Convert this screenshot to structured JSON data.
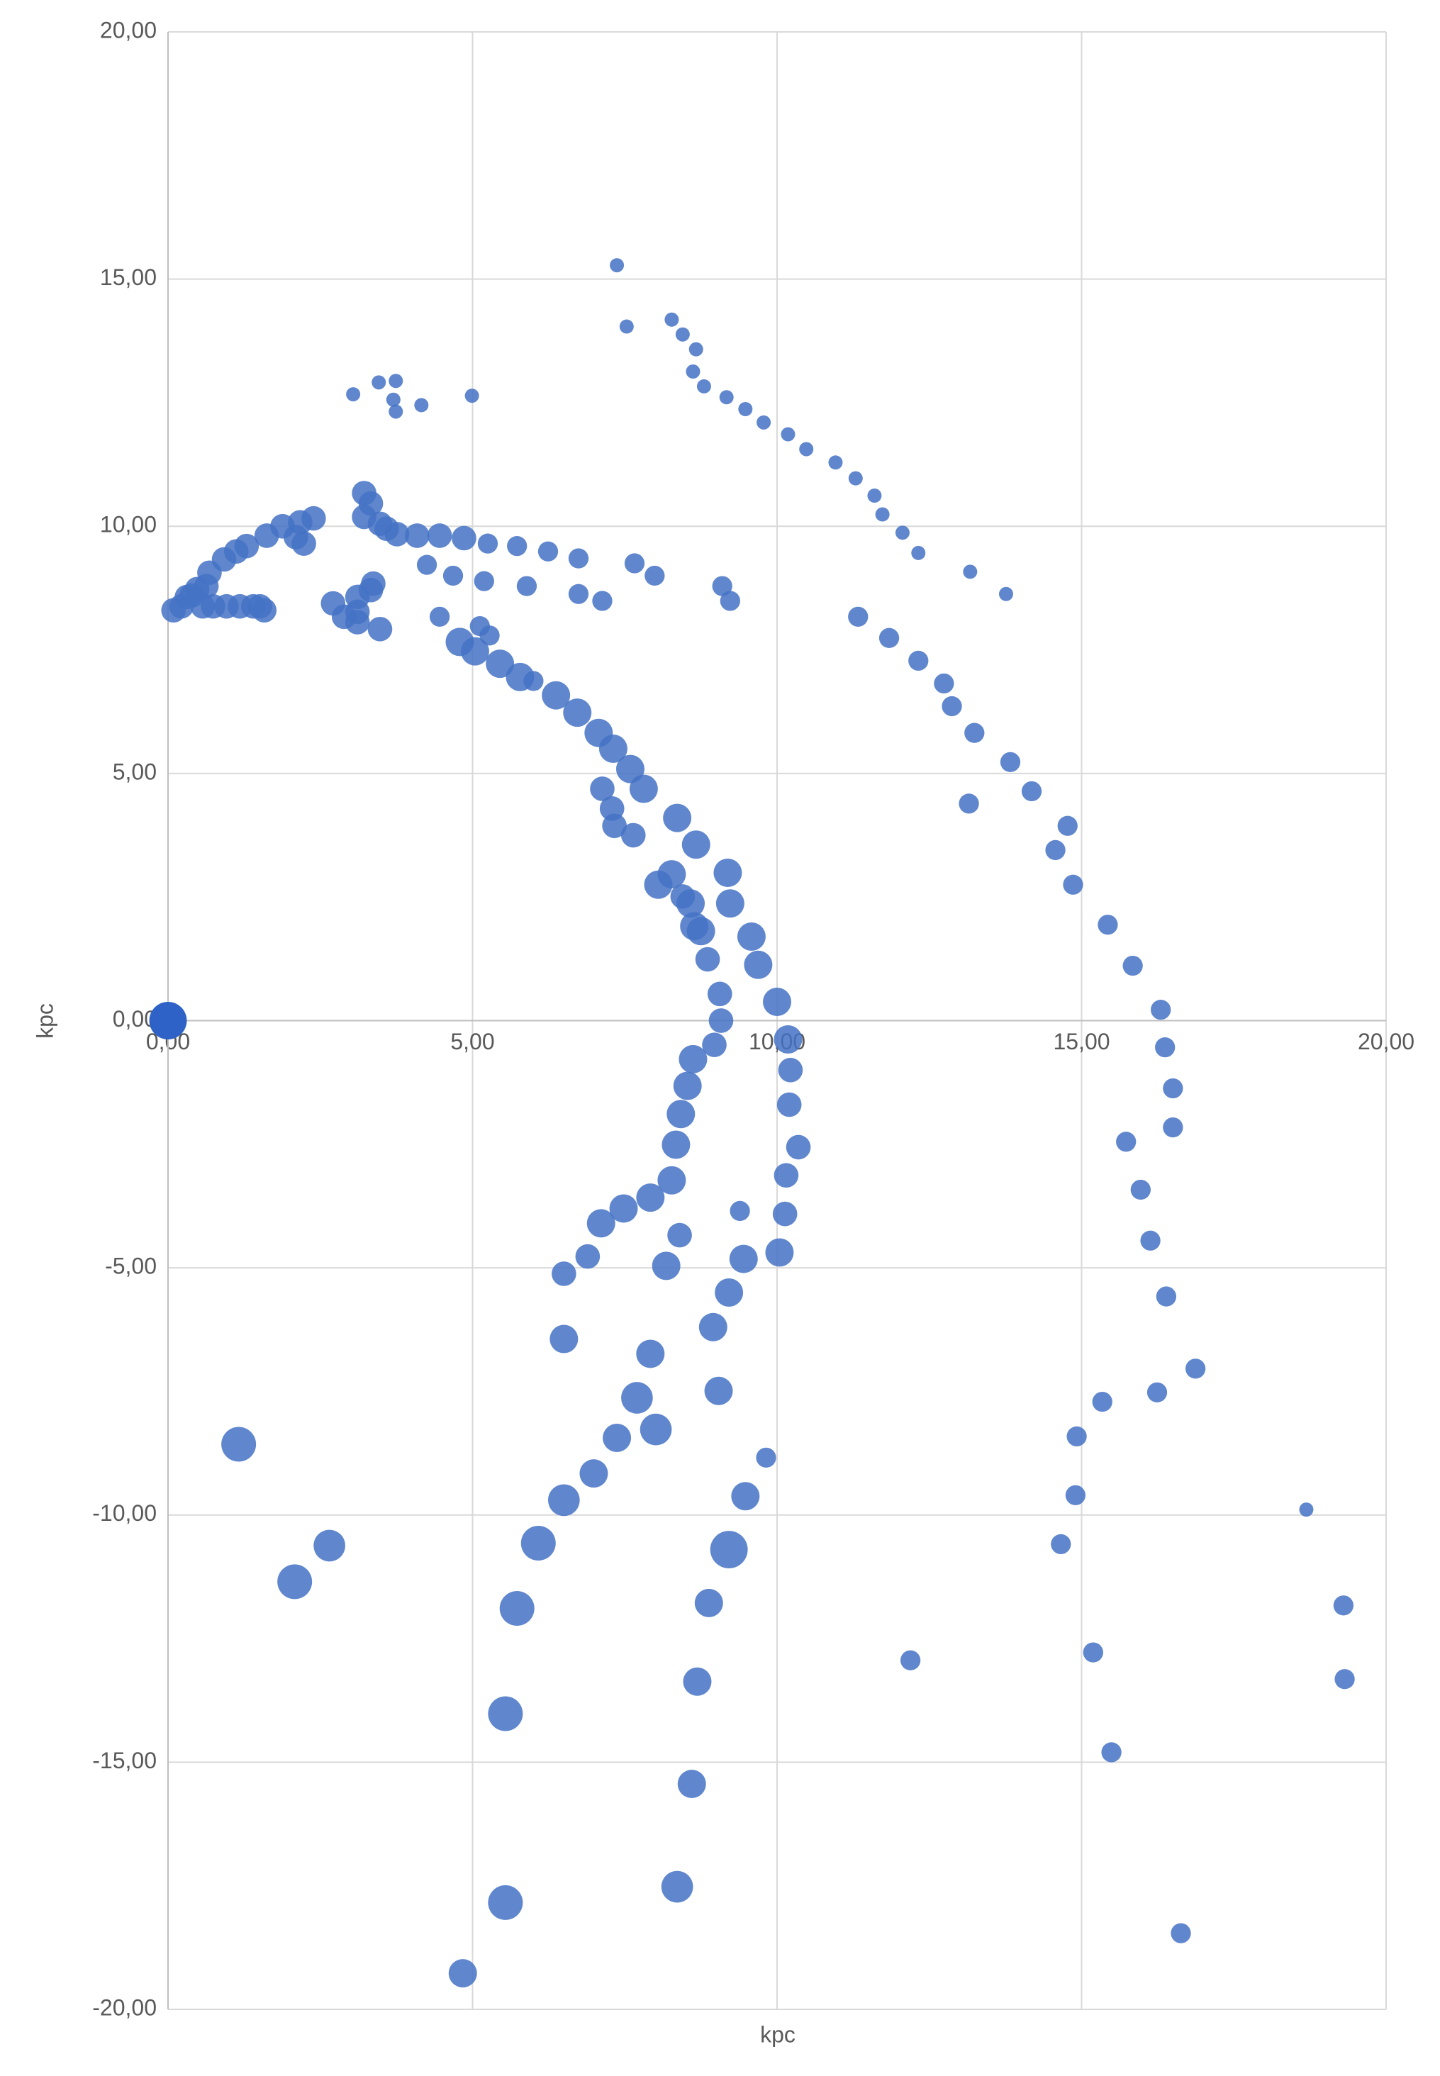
{
  "chart_data": {
    "type": "bubble",
    "x_label": "kpc",
    "y_label": "kpc",
    "xlim": [
      0,
      20
    ],
    "ylim": [
      -20,
      20
    ],
    "xticks": [
      {
        "value": 0,
        "label": "0,00"
      },
      {
        "value": 5,
        "label": "5,00"
      },
      {
        "value": 10,
        "label": "10,00"
      },
      {
        "value": 15,
        "label": "15,00"
      },
      {
        "value": 20,
        "label": "20,00"
      }
    ],
    "yticks": [
      {
        "value": -20,
        "label": "-20,00"
      },
      {
        "value": -15,
        "label": "-15,00"
      },
      {
        "value": -10,
        "label": "-10,00"
      },
      {
        "value": -5,
        "label": "-5,00"
      },
      {
        "value": 0,
        "label": "0,00"
      },
      {
        "value": 5,
        "label": "5,00"
      },
      {
        "value": 10,
        "label": "10,00"
      },
      {
        "value": 15,
        "label": "15,00"
      },
      {
        "value": 20,
        "label": "20,00"
      }
    ],
    "grid": true,
    "series": [
      {
        "color": "#4472c4",
        "opacity": 0.85,
        "x": [
          7.37,
          7.53,
          8.27,
          8.45,
          8.67,
          8.62,
          8.8,
          9.17,
          9.48,
          9.78,
          10.18,
          10.48,
          10.96,
          11.29,
          11.6,
          11.73,
          12.06,
          12.32,
          13.17,
          13.76,
          3.04,
          3.46,
          3.74,
          3.7,
          3.74,
          4.16,
          4.99,
          11.33,
          11.84,
          12.32,
          12.74,
          12.87,
          13.24,
          13.15,
          13.83,
          14.18,
          14.77,
          14.57,
          14.86,
          15.43,
          15.84,
          16.3,
          16.37,
          16.5,
          16.5,
          15.73,
          15.97,
          16.13,
          16.39,
          16.87,
          16.24,
          15.34,
          14.92,
          14.9,
          14.66,
          15.19,
          15.49,
          16.63,
          12.19,
          9.82,
          18.69,
          19.3,
          19.32,
          0.09,
          0.22,
          0.31,
          0.39,
          0.48,
          0.63,
          0.57,
          0.74,
          0.96,
          1.18,
          1.4,
          1.51,
          1.58,
          0.68,
          0.92,
          1.12,
          1.29,
          1.62,
          1.88,
          2.1,
          2.23,
          2.17,
          2.39,
          2.71,
          2.89,
          3.11,
          3.11,
          3.11,
          3.37,
          3.33,
          3.48,
          3.22,
          3.33,
          3.22,
          3.48,
          3.59,
          3.76,
          4.09,
          4.46,
          4.86,
          5.25,
          5.73,
          6.24,
          6.74,
          7.66,
          7.99,
          9.1,
          9.23,
          7.13,
          6.74,
          5.89,
          5.19,
          4.68,
          4.25,
          4.46,
          5.12,
          5.28,
          4.79,
          5.04,
          5.45,
          5.78,
          6.0,
          6.37,
          6.72,
          7.07,
          7.31,
          7.59,
          7.81,
          7.13,
          7.29,
          7.33,
          7.64,
          8.36,
          8.67,
          8.27,
          9.19,
          8.05,
          8.45,
          8.58,
          9.23,
          8.64,
          8.75,
          9.58,
          8.86,
          9.69,
          9.06,
          10.0,
          9.08,
          8.97,
          10.18,
          8.62,
          10.22,
          8.53,
          10.2,
          8.42,
          10.35,
          8.34,
          10.15,
          8.27,
          7.92,
          7.48,
          7.11,
          10.13,
          9.39,
          8.4,
          10.04,
          9.45,
          6.89,
          6.5,
          8.18,
          9.21,
          8.95,
          6.5,
          7.92,
          9.04,
          7.7,
          8.01,
          7.37,
          6.99,
          6.5,
          9.48,
          6.08,
          9.21,
          5.73,
          8.88,
          8.69,
          5.54,
          8.6,
          8.36,
          5.54,
          4.84,
          1.16,
          2.65,
          2.08
        ],
        "values": [
          15.28,
          14.04,
          14.18,
          13.88,
          13.58,
          13.13,
          12.83,
          12.61,
          12.37,
          12.1,
          11.86,
          11.56,
          11.29,
          10.97,
          10.62,
          10.24,
          9.87,
          9.46,
          9.08,
          8.63,
          12.67,
          12.91,
          12.94,
          12.56,
          12.32,
          12.45,
          12.64,
          8.17,
          7.74,
          7.28,
          6.82,
          6.36,
          5.82,
          4.39,
          5.23,
          4.64,
          3.94,
          3.45,
          2.75,
          1.94,
          1.11,
          0.22,
          -0.54,
          -1.37,
          -2.16,
          -2.45,
          -3.42,
          -4.45,
          -5.58,
          -7.04,
          -7.52,
          -7.71,
          -8.41,
          -9.6,
          -10.59,
          -12.78,
          -14.8,
          -18.46,
          -12.94,
          -8.84,
          -9.89,
          -11.83,
          -13.32,
          8.3,
          8.38,
          8.57,
          8.6,
          8.73,
          8.79,
          8.38,
          8.38,
          8.38,
          8.38,
          8.38,
          8.38,
          8.3,
          9.06,
          9.33,
          9.49,
          9.6,
          9.81,
          10.0,
          9.78,
          9.65,
          10.08,
          10.16,
          8.44,
          8.17,
          8.27,
          8.06,
          8.57,
          8.84,
          8.71,
          7.92,
          10.67,
          10.46,
          10.19,
          10.05,
          9.95,
          9.84,
          9.81,
          9.81,
          9.76,
          9.65,
          9.6,
          9.49,
          9.35,
          9.25,
          9.0,
          8.79,
          8.49,
          8.49,
          8.63,
          8.79,
          8.89,
          9.0,
          9.22,
          8.17,
          7.98,
          7.79,
          7.66,
          7.47,
          7.22,
          6.95,
          6.87,
          6.58,
          6.23,
          5.82,
          5.5,
          5.09,
          4.69,
          4.69,
          4.29,
          3.94,
          3.75,
          4.1,
          3.56,
          2.96,
          2.99,
          2.75,
          2.51,
          2.37,
          2.37,
          1.91,
          1.81,
          1.7,
          1.24,
          1.13,
          0.54,
          0.38,
          0.0,
          -0.49,
          -0.38,
          -0.78,
          -1.0,
          -1.32,
          -1.7,
          -1.89,
          -2.56,
          -2.51,
          -3.13,
          -3.23,
          -3.58,
          -3.8,
          -4.1,
          -3.91,
          -3.85,
          -4.34,
          -4.69,
          -4.82,
          -4.77,
          -5.12,
          -4.96,
          -5.5,
          -6.2,
          -6.44,
          -6.74,
          -7.49,
          -7.63,
          -8.27,
          -8.44,
          -9.16,
          -9.7,
          -9.62,
          -10.57,
          -10.7,
          -11.89,
          -11.78,
          -13.37,
          -14.02,
          -15.44,
          -17.52,
          -17.84,
          -19.27,
          -8.57,
          -10.62,
          -11.35
        ],
        "sizes": [
          1,
          1,
          1,
          1,
          1,
          1,
          1,
          1,
          1,
          1,
          1,
          1,
          1,
          1,
          1,
          1,
          1,
          1,
          1,
          1,
          1,
          1,
          1,
          1,
          1,
          1,
          1,
          2,
          2,
          2,
          2,
          2,
          2,
          2,
          2,
          2,
          2,
          2,
          2,
          2,
          2,
          2,
          2,
          2,
          2,
          2,
          2,
          2,
          2,
          2,
          2,
          2,
          2,
          2,
          2,
          2,
          2,
          2,
          2,
          2,
          1,
          2,
          2,
          3,
          3,
          3,
          3,
          3,
          3,
          3,
          3,
          3,
          3,
          3,
          3,
          3,
          3,
          3,
          3,
          3,
          3,
          3,
          3,
          3,
          3,
          3,
          3,
          3,
          3,
          3,
          3,
          3,
          3,
          3,
          3,
          3,
          3,
          3,
          3,
          3,
          3,
          3,
          3,
          2,
          2,
          2,
          2,
          2,
          2,
          2,
          2,
          2,
          2,
          2,
          2,
          2,
          2,
          2,
          2,
          2,
          4,
          4,
          4,
          4,
          2,
          4,
          4,
          4,
          4,
          4,
          4,
          3,
          3,
          3,
          3,
          4,
          4,
          4,
          4,
          4,
          3,
          4,
          4,
          4,
          4,
          4,
          3,
          4,
          3,
          4,
          3,
          3,
          4,
          4,
          3,
          4,
          3,
          4,
          3,
          4,
          3,
          4,
          4,
          4,
          4,
          3,
          2,
          3,
          4,
          4,
          3,
          3,
          4,
          4,
          4,
          4,
          4,
          4,
          5,
          5,
          4,
          4,
          5,
          4,
          6,
          7,
          6,
          4,
          4,
          6,
          4,
          5,
          6,
          4,
          6,
          5,
          6
        ]
      },
      {
        "color": "#2f62c6",
        "opacity": 1,
        "x": [
          0
        ],
        "values": [
          0
        ],
        "sizes": [
          7
        ]
      }
    ]
  }
}
